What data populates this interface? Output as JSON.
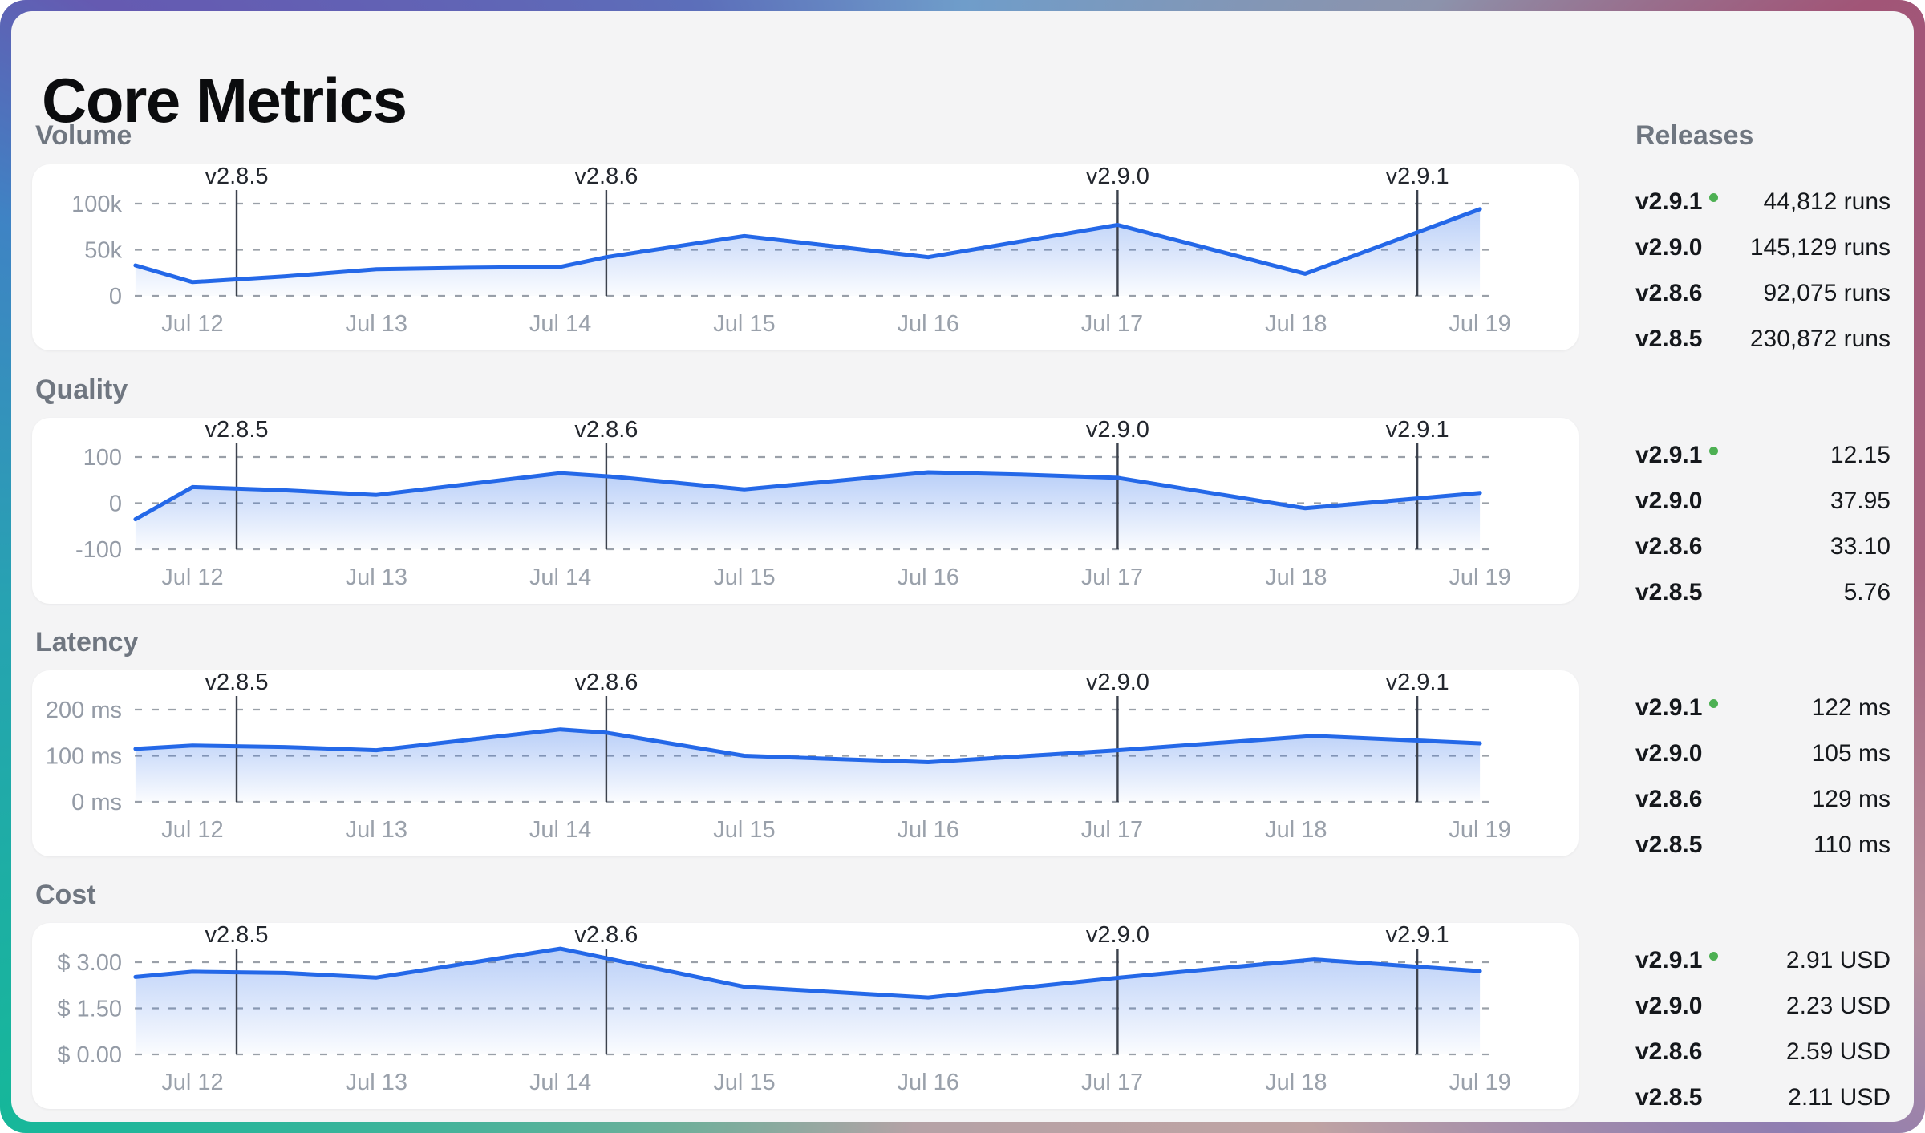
{
  "title": "Core Metrics",
  "releases_header": "Releases",
  "colors": {
    "accent_line": "#2468e8",
    "panel_bg": "#f4f4f5",
    "card_bg": "#ffffff",
    "grid": "#9aa0a8",
    "tick_text": "#9aa1ab",
    "section_label": "#6f7680",
    "marker_line": "#3c424d",
    "current_dot": "#4db053"
  },
  "sections": [
    {
      "label": "Volume",
      "releases": [
        {
          "version": "v2.9.1",
          "current": true,
          "value": "44,812 runs"
        },
        {
          "version": "v2.9.0",
          "current": false,
          "value": "145,129 runs"
        },
        {
          "version": "v2.8.6",
          "current": false,
          "value": "92,075 runs"
        },
        {
          "version": "v2.8.5",
          "current": false,
          "value": "230,872 runs"
        }
      ]
    },
    {
      "label": "Quality",
      "releases": [
        {
          "version": "v2.9.1",
          "current": true,
          "value": "12.15"
        },
        {
          "version": "v2.9.0",
          "current": false,
          "value": "37.95"
        },
        {
          "version": "v2.8.6",
          "current": false,
          "value": "33.10"
        },
        {
          "version": "v2.8.5",
          "current": false,
          "value": "5.76"
        }
      ]
    },
    {
      "label": "Latency",
      "releases": [
        {
          "version": "v2.9.1",
          "current": true,
          "value": "122 ms"
        },
        {
          "version": "v2.9.0",
          "current": false,
          "value": "105 ms"
        },
        {
          "version": "v2.8.6",
          "current": false,
          "value": "129 ms"
        },
        {
          "version": "v2.8.5",
          "current": false,
          "value": "110 ms"
        }
      ]
    },
    {
      "label": "Cost",
      "releases": [
        {
          "version": "v2.9.1",
          "current": true,
          "value": "2.91 USD"
        },
        {
          "version": "v2.9.0",
          "current": false,
          "value": "2.23 USD"
        },
        {
          "version": "v2.8.6",
          "current": false,
          "value": "2.59 USD"
        },
        {
          "version": "v2.8.5",
          "current": false,
          "value": "2.11 USD"
        }
      ]
    }
  ],
  "chart_data": [
    {
      "type": "area-line",
      "title": "Volume",
      "unit": "runs",
      "line_color": "#2468e8",
      "x_range": [
        11.69,
        19
      ],
      "x_ticks": [
        {
          "day": 12,
          "label": "Jul 12"
        },
        {
          "day": 13,
          "label": "Jul 13"
        },
        {
          "day": 14,
          "label": "Jul 14"
        },
        {
          "day": 15,
          "label": "Jul 15"
        },
        {
          "day": 16,
          "label": "Jul 16"
        },
        {
          "day": 17,
          "label": "Jul 17"
        },
        {
          "day": 18,
          "label": "Jul 18"
        },
        {
          "day": 19,
          "label": "Jul 19"
        }
      ],
      "y_gridlines": [
        {
          "value": 100000,
          "label": "100k"
        },
        {
          "value": 50000,
          "label": "50k"
        },
        {
          "value": 0,
          "label": "0"
        }
      ],
      "release_markers": [
        {
          "label": "v2.8.5",
          "x": 12.24
        },
        {
          "label": "v2.8.6",
          "x": 14.25
        },
        {
          "label": "v2.9.0",
          "x": 17.03
        },
        {
          "label": "v2.9.1",
          "x": 18.66
        }
      ],
      "points": [
        {
          "x": 11.69,
          "y": 33000
        },
        {
          "x": 12,
          "y": 15000
        },
        {
          "x": 12.5,
          "y": 21000
        },
        {
          "x": 13,
          "y": 29000
        },
        {
          "x": 13.5,
          "y": 30500
        },
        {
          "x": 14,
          "y": 31500
        },
        {
          "x": 14.25,
          "y": 42000
        },
        {
          "x": 15,
          "y": 65000
        },
        {
          "x": 16,
          "y": 42000
        },
        {
          "x": 17.03,
          "y": 77000
        },
        {
          "x": 18.05,
          "y": 24000
        },
        {
          "x": 19,
          "y": 94000
        }
      ]
    },
    {
      "type": "area-line",
      "title": "Quality",
      "unit": "",
      "line_color": "#2468e8",
      "x_range": [
        11.69,
        19
      ],
      "x_ticks": [
        {
          "day": 12,
          "label": "Jul 12"
        },
        {
          "day": 13,
          "label": "Jul 13"
        },
        {
          "day": 14,
          "label": "Jul 14"
        },
        {
          "day": 15,
          "label": "Jul 15"
        },
        {
          "day": 16,
          "label": "Jul 16"
        },
        {
          "day": 17,
          "label": "Jul 17"
        },
        {
          "day": 18,
          "label": "Jul 18"
        },
        {
          "day": 19,
          "label": "Jul 19"
        }
      ],
      "y_gridlines": [
        {
          "value": 100,
          "label": "100"
        },
        {
          "value": 0,
          "label": "0"
        },
        {
          "value": -100,
          "label": "-100"
        }
      ],
      "release_markers": [
        {
          "label": "v2.8.5",
          "x": 12.24
        },
        {
          "label": "v2.8.6",
          "x": 14.25
        },
        {
          "label": "v2.9.0",
          "x": 17.03
        },
        {
          "label": "v2.9.1",
          "x": 18.66
        }
      ],
      "points": [
        {
          "x": 11.69,
          "y": -35
        },
        {
          "x": 12,
          "y": 35
        },
        {
          "x": 12.5,
          "y": 28
        },
        {
          "x": 13,
          "y": 18
        },
        {
          "x": 14,
          "y": 65
        },
        {
          "x": 14.3,
          "y": 57
        },
        {
          "x": 15,
          "y": 30
        },
        {
          "x": 16,
          "y": 67
        },
        {
          "x": 16.5,
          "y": 62
        },
        {
          "x": 17.03,
          "y": 55
        },
        {
          "x": 18.05,
          "y": -11
        },
        {
          "x": 19,
          "y": 22
        }
      ]
    },
    {
      "type": "area-line",
      "title": "Latency",
      "unit": "ms",
      "line_color": "#2468e8",
      "x_range": [
        11.69,
        19
      ],
      "x_ticks": [
        {
          "day": 12,
          "label": "Jul 12"
        },
        {
          "day": 13,
          "label": "Jul 13"
        },
        {
          "day": 14,
          "label": "Jul 14"
        },
        {
          "day": 15,
          "label": "Jul 15"
        },
        {
          "day": 16,
          "label": "Jul 16"
        },
        {
          "day": 17,
          "label": "Jul 17"
        },
        {
          "day": 18,
          "label": "Jul 18"
        },
        {
          "day": 19,
          "label": "Jul 19"
        }
      ],
      "y_gridlines": [
        {
          "value": 200,
          "label": "200 ms"
        },
        {
          "value": 100,
          "label": "100 ms"
        },
        {
          "value": 0,
          "label": "0 ms"
        }
      ],
      "release_markers": [
        {
          "label": "v2.8.5",
          "x": 12.24
        },
        {
          "label": "v2.8.6",
          "x": 14.25
        },
        {
          "label": "v2.9.0",
          "x": 17.03
        },
        {
          "label": "v2.9.1",
          "x": 18.66
        }
      ],
      "points": [
        {
          "x": 11.69,
          "y": 115
        },
        {
          "x": 12,
          "y": 122
        },
        {
          "x": 12.5,
          "y": 119
        },
        {
          "x": 13,
          "y": 112
        },
        {
          "x": 14,
          "y": 157
        },
        {
          "x": 14.25,
          "y": 150
        },
        {
          "x": 15,
          "y": 100
        },
        {
          "x": 16,
          "y": 86
        },
        {
          "x": 17.03,
          "y": 112
        },
        {
          "x": 18.1,
          "y": 143
        },
        {
          "x": 19,
          "y": 127
        }
      ]
    },
    {
      "type": "area-line",
      "title": "Cost",
      "unit": "USD",
      "line_color": "#2468e8",
      "x_range": [
        11.69,
        19
      ],
      "x_ticks": [
        {
          "day": 12,
          "label": "Jul 12"
        },
        {
          "day": 13,
          "label": "Jul 13"
        },
        {
          "day": 14,
          "label": "Jul 14"
        },
        {
          "day": 15,
          "label": "Jul 15"
        },
        {
          "day": 16,
          "label": "Jul 16"
        },
        {
          "day": 17,
          "label": "Jul 17"
        },
        {
          "day": 18,
          "label": "Jul 18"
        },
        {
          "day": 19,
          "label": "Jul 19"
        }
      ],
      "y_gridlines": [
        {
          "value": 3.0,
          "label": "$ 3.00"
        },
        {
          "value": 1.5,
          "label": "$ 1.50"
        },
        {
          "value": 0.0,
          "label": "$ 0.00"
        }
      ],
      "release_markers": [
        {
          "label": "v2.8.5",
          "x": 12.24
        },
        {
          "label": "v2.8.6",
          "x": 14.25
        },
        {
          "label": "v2.9.0",
          "x": 17.03
        },
        {
          "label": "v2.9.1",
          "x": 18.66
        }
      ],
      "points": [
        {
          "x": 11.69,
          "y": 2.52
        },
        {
          "x": 12,
          "y": 2.69
        },
        {
          "x": 12.5,
          "y": 2.65
        },
        {
          "x": 13,
          "y": 2.5
        },
        {
          "x": 14,
          "y": 3.44
        },
        {
          "x": 15,
          "y": 2.2
        },
        {
          "x": 16,
          "y": 1.85
        },
        {
          "x": 17.03,
          "y": 2.49
        },
        {
          "x": 18.1,
          "y": 3.09
        },
        {
          "x": 19,
          "y": 2.71
        }
      ]
    }
  ]
}
